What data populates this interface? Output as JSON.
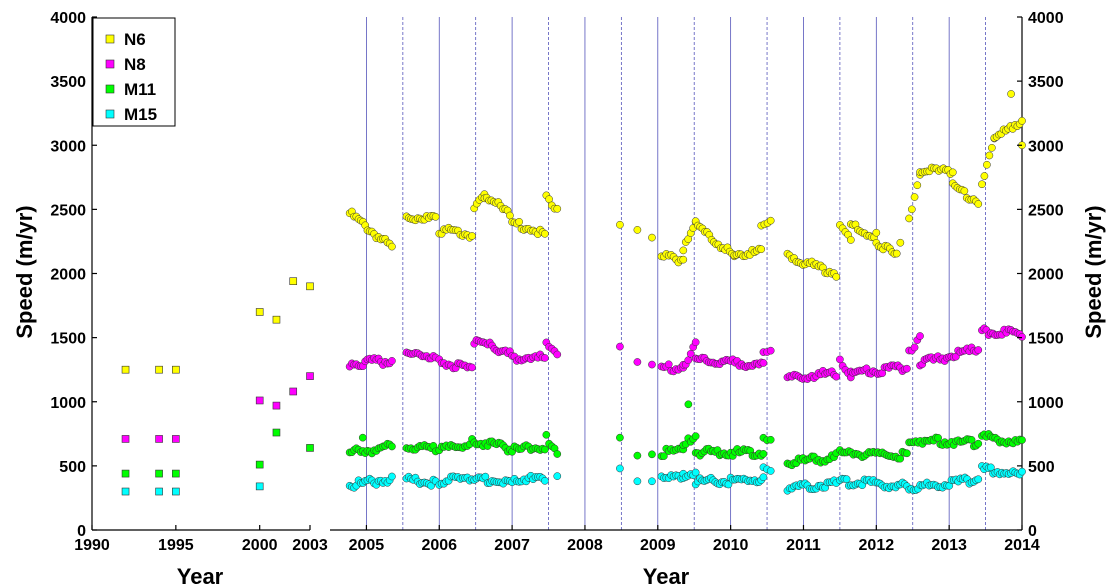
{
  "chart_data": {
    "type": "scatter",
    "ylabel": "Speed (m/yr)",
    "ylabel_right": "Speed (m/yr)",
    "ylim": [
      0,
      4000
    ],
    "y_ticks": [
      "0",
      "500",
      "1000",
      "1500",
      "2000",
      "2500",
      "3000",
      "3500",
      "4000"
    ],
    "grid": false,
    "legend_position": "top-left",
    "colors": {
      "N6": "#ffff00",
      "N8": "#ff00ff",
      "M11": "#00ff00",
      "M15": "#00ffff",
      "vline": "#5555bb"
    },
    "left_panel": {
      "xlabel": "Year",
      "xlim": [
        1990,
        2003
      ],
      "x_ticks": [
        "1990",
        "1995",
        "2000",
        "2003"
      ],
      "series": [
        {
          "name": "N6",
          "marker": "square",
          "x": [
            1992,
            1994,
            1995,
            2000,
            2001,
            2002,
            2003
          ],
          "y": [
            1250,
            1250,
            1250,
            1700,
            1640,
            1940,
            1900
          ]
        },
        {
          "name": "N8",
          "marker": "square",
          "x": [
            1992,
            1994,
            1995,
            2000,
            2001,
            2002,
            2003
          ],
          "y": [
            710,
            710,
            710,
            1010,
            970,
            1080,
            1200
          ]
        },
        {
          "name": "M11",
          "marker": "square",
          "x": [
            1992,
            1994,
            1995,
            2000,
            2001,
            2003
          ],
          "y": [
            440,
            440,
            440,
            510,
            760,
            640
          ]
        },
        {
          "name": "M15",
          "marker": "square",
          "x": [
            1992,
            1994,
            1995,
            2000
          ],
          "y": [
            300,
            300,
            300,
            340
          ]
        }
      ]
    },
    "right_panel": {
      "xlabel": "Year",
      "xlim": [
        2004.5,
        2014
      ],
      "x_ticks": [
        "2005",
        "2006",
        "2007",
        "2008",
        "2009",
        "2010",
        "2011",
        "2012",
        "2013",
        "2014"
      ],
      "vlines_solid": [
        2005,
        2006,
        2007,
        2008,
        2009,
        2010,
        2011,
        2012,
        2013
      ],
      "vlines_dashed": [
        2005.5,
        2006.5,
        2007.5,
        2008.5,
        2009.5,
        2010.5,
        2011.5,
        2012.5,
        2013.5
      ],
      "series": [
        {
          "name": "N6",
          "marker": "circle",
          "segments": [
            [
              2004.77,
              2005.35,
              2470,
              2200
            ],
            [
              2005.55,
              2005.95,
              2440,
              2430
            ],
            [
              2006.0,
              2006.45,
              2340,
              2300
            ],
            [
              2006.48,
              2006.62,
              2500,
              2630
            ],
            [
              2006.62,
              2006.97,
              2610,
              2460
            ],
            [
              2007.0,
              2007.45,
              2400,
              2300
            ],
            [
              2007.47,
              2007.62,
              2610,
              2510
            ],
            [
              2009.05,
              2009.35,
              2130,
              2110
            ],
            [
              2009.35,
              2009.52,
              2200,
              2430
            ],
            [
              2009.52,
              2010.05,
              2380,
              2130
            ],
            [
              2010.05,
              2010.42,
              2150,
              2170
            ],
            [
              2010.42,
              2010.55,
              2380,
              2390
            ],
            [
              2010.78,
              2011.45,
              2140,
              2000
            ],
            [
              2011.5,
              2011.65,
              2400,
              2250
            ],
            [
              2011.65,
              2012.0,
              2370,
              2290
            ],
            [
              2012.0,
              2012.28,
              2250,
              2140
            ],
            [
              2012.45,
              2012.6,
              2400,
              2760
            ],
            [
              2012.6,
              2013.05,
              2800,
              2790
            ],
            [
              2013.05,
              2013.4,
              2680,
              2560
            ],
            [
              2013.45,
              2013.62,
              2700,
              3080
            ],
            [
              2013.62,
              2014.0,
              3050,
              3200
            ]
          ],
          "points": [
            [
              2008.48,
              2380
            ],
            [
              2008.72,
              2340
            ],
            [
              2008.92,
              2280
            ],
            [
              2012.33,
              2240
            ],
            [
              2013.85,
              3400
            ],
            [
              2014.0,
              3000
            ]
          ]
        },
        {
          "name": "N8",
          "marker": "circle",
          "segments": [
            [
              2004.77,
              2005.35,
              1300,
              1320
            ],
            [
              2005.55,
              2005.95,
              1370,
              1360
            ],
            [
              2006.0,
              2006.45,
              1320,
              1250
            ],
            [
              2006.48,
              2006.97,
              1470,
              1390
            ],
            [
              2007.0,
              2007.45,
              1350,
              1340
            ],
            [
              2007.47,
              2007.62,
              1480,
              1360
            ],
            [
              2009.05,
              2009.35,
              1260,
              1270
            ],
            [
              2009.35,
              2009.52,
              1290,
              1440
            ],
            [
              2009.52,
              2010.45,
              1330,
              1280
            ],
            [
              2010.45,
              2010.55,
              1410,
              1420
            ],
            [
              2010.78,
              2011.45,
              1190,
              1220
            ],
            [
              2011.5,
              2011.65,
              1340,
              1200
            ],
            [
              2011.65,
              2012.42,
              1220,
              1270
            ],
            [
              2012.45,
              2012.6,
              1380,
              1520
            ],
            [
              2012.6,
              2013.4,
              1300,
              1410
            ],
            [
              2013.45,
              2014.0,
              1550,
              1530
            ]
          ],
          "points": [
            [
              2008.48,
              1430
            ],
            [
              2008.72,
              1310
            ],
            [
              2008.92,
              1290
            ]
          ]
        },
        {
          "name": "M11",
          "marker": "circle",
          "segments": [
            [
              2004.77,
              2005.35,
              600,
              650
            ],
            [
              2005.55,
              2005.95,
              660,
              630
            ],
            [
              2006.0,
              2006.45,
              620,
              680
            ],
            [
              2006.48,
              2006.97,
              700,
              630
            ],
            [
              2007.0,
              2007.45,
              620,
              650
            ],
            [
              2007.47,
              2007.62,
              720,
              610
            ],
            [
              2009.05,
              2009.35,
              600,
              620
            ],
            [
              2009.35,
              2009.52,
              650,
              740
            ],
            [
              2009.52,
              2010.45,
              610,
              600
            ],
            [
              2010.45,
              2010.55,
              700,
              690
            ],
            [
              2010.78,
              2011.45,
              520,
              570
            ],
            [
              2011.5,
              2012.42,
              600,
              580
            ],
            [
              2012.45,
              2013.4,
              700,
              680
            ],
            [
              2013.45,
              2014.0,
              730,
              680
            ]
          ],
          "points": [
            [
              2004.95,
              720
            ],
            [
              2008.48,
              720
            ],
            [
              2008.72,
              580
            ],
            [
              2008.92,
              590
            ],
            [
              2009.42,
              980
            ]
          ]
        },
        {
          "name": "M15",
          "marker": "circle",
          "segments": [
            [
              2004.77,
              2005.35,
              350,
              400
            ],
            [
              2005.55,
              2005.95,
              390,
              370
            ],
            [
              2006.0,
              2006.45,
              380,
              400
            ],
            [
              2006.48,
              2006.97,
              390,
              380
            ],
            [
              2007.0,
              2007.45,
              400,
              390
            ],
            [
              2009.05,
              2009.35,
              400,
              410
            ],
            [
              2009.35,
              2009.52,
              420,
              450
            ],
            [
              2009.52,
              2010.45,
              380,
              390
            ],
            [
              2010.45,
              2010.55,
              460,
              480
            ],
            [
              2010.78,
              2011.45,
              330,
              360
            ],
            [
              2011.5,
              2012.42,
              380,
              340
            ],
            [
              2012.45,
              2013.4,
              320,
              400
            ],
            [
              2013.45,
              2014.0,
              470,
              430
            ]
          ],
          "points": [
            [
              2007.62,
              420
            ],
            [
              2008.48,
              480
            ],
            [
              2008.72,
              380
            ],
            [
              2008.92,
              380
            ]
          ]
        }
      ]
    }
  }
}
